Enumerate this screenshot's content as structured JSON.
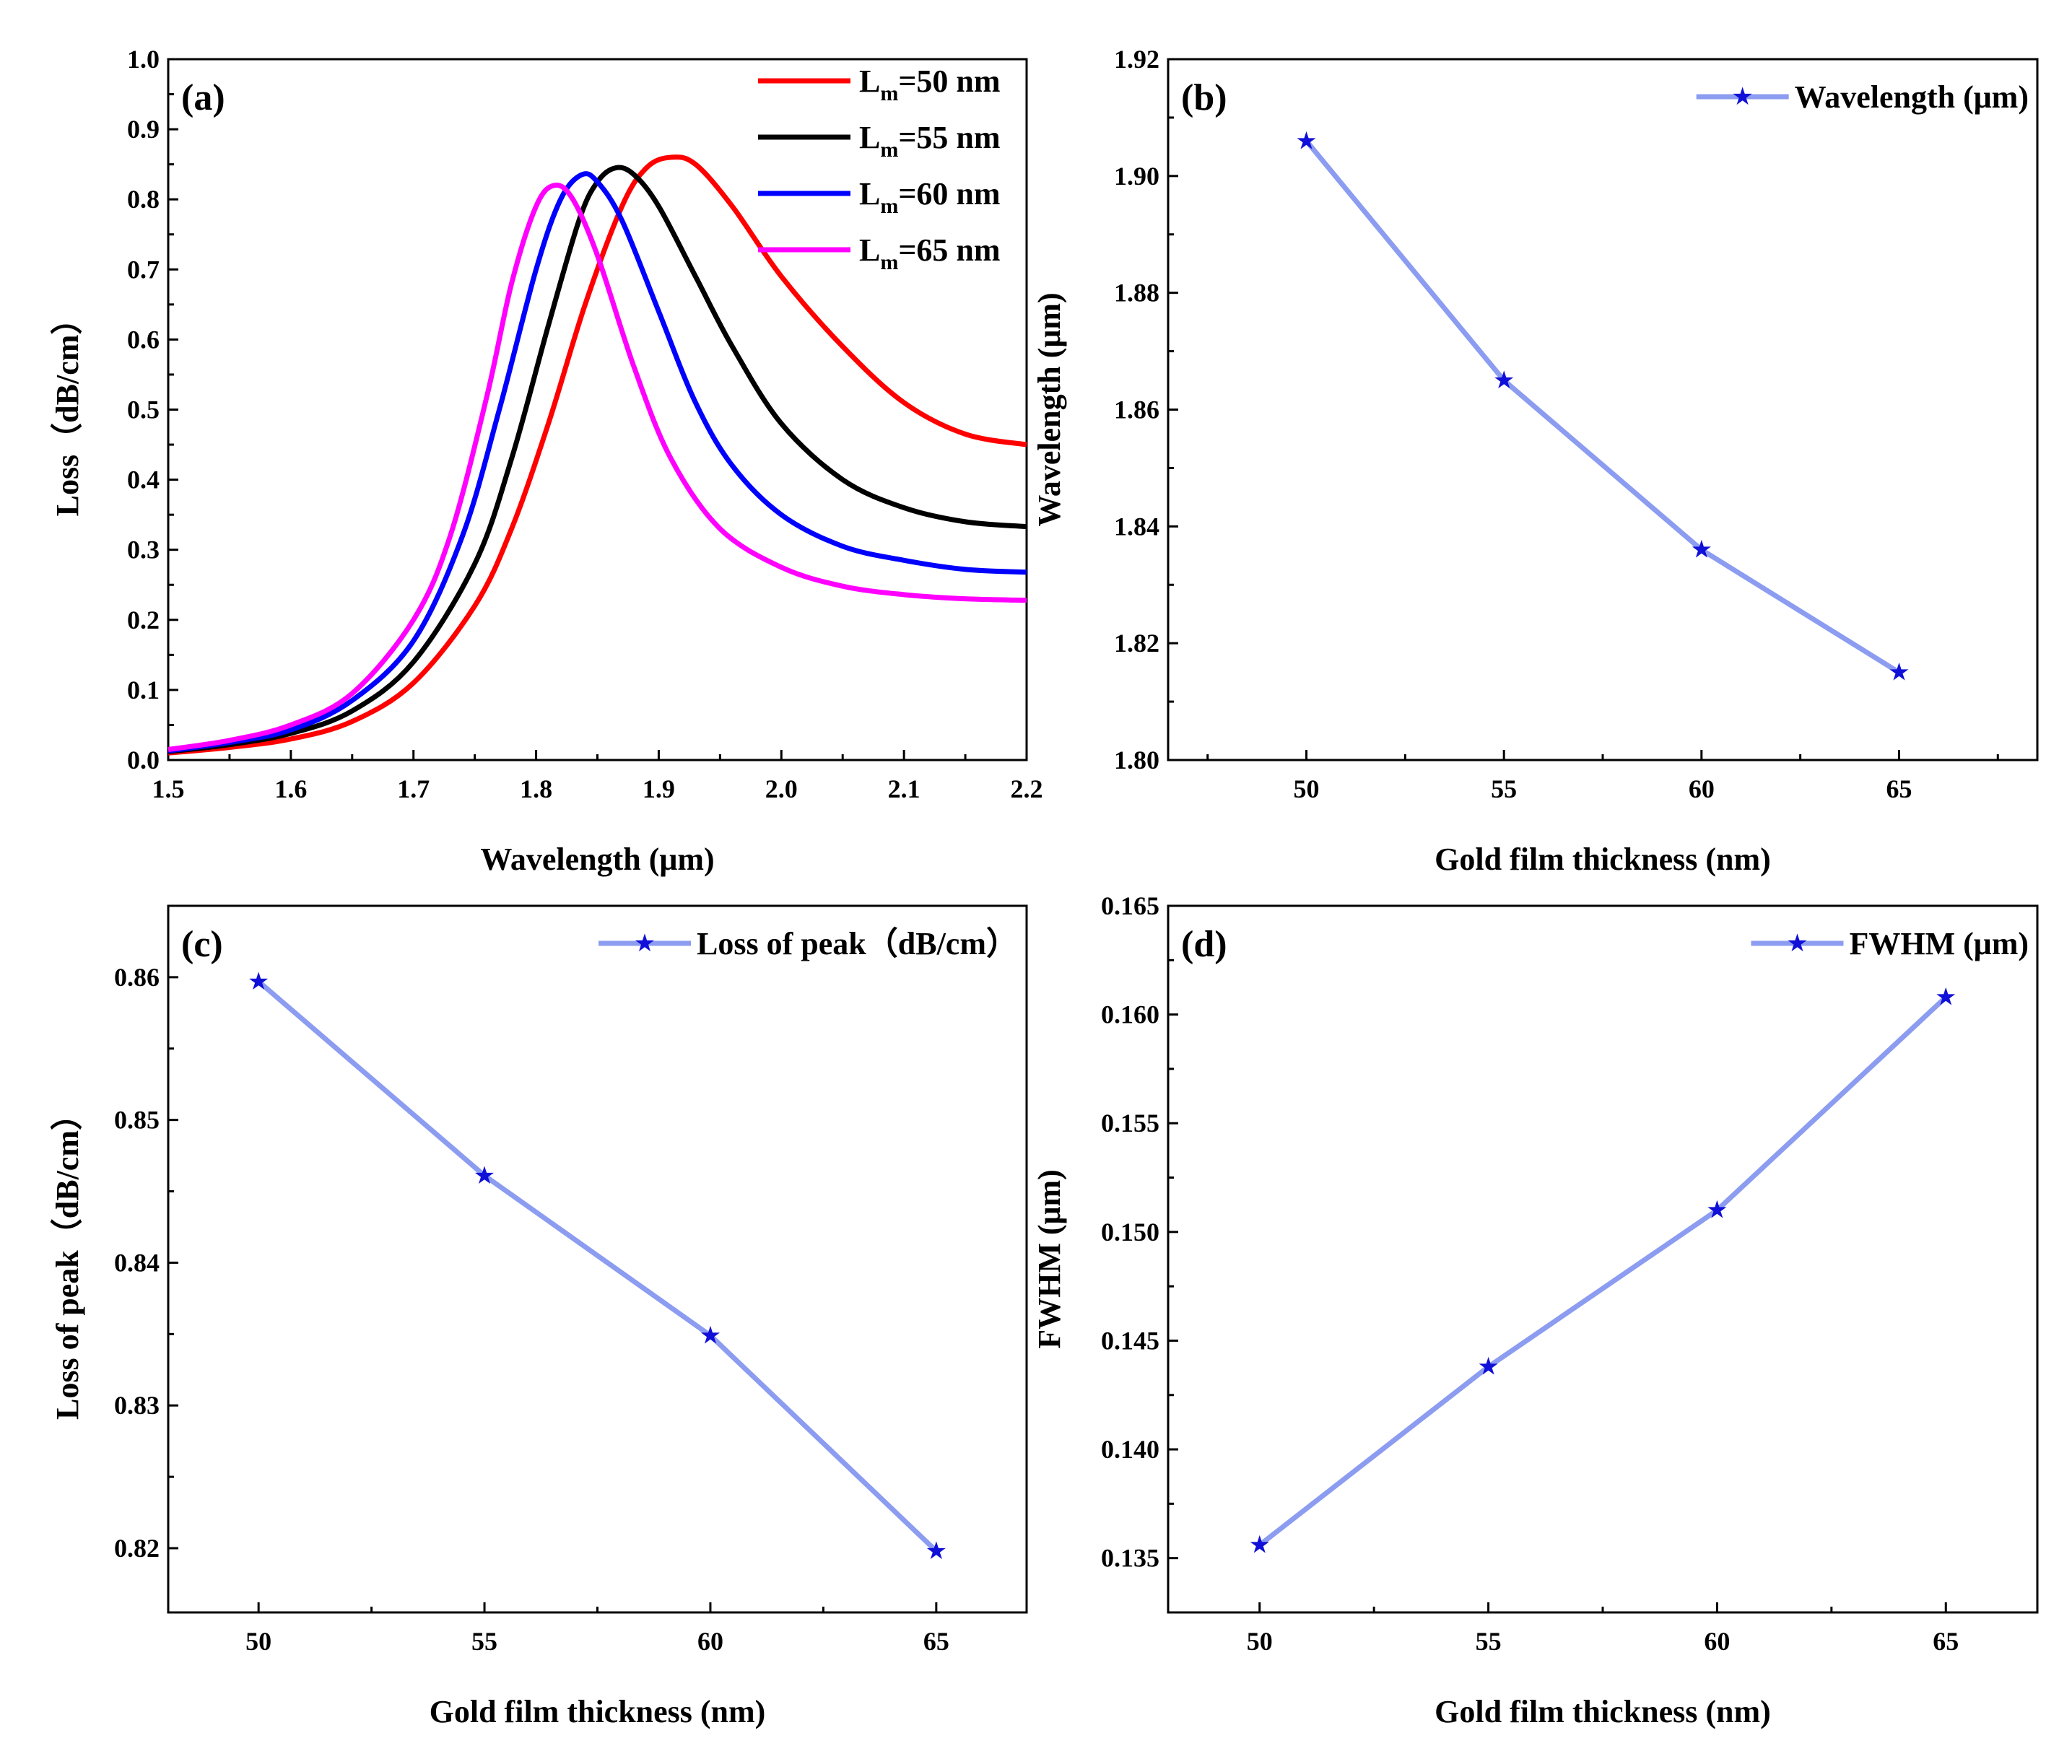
{
  "chart_data": [
    {
      "panel": "(a)",
      "type": "line",
      "xlabel": "Wavelength (μm)",
      "ylabel": "Loss（dB/cm）",
      "xlim": [
        1.5,
        2.2
      ],
      "ylim": [
        0.0,
        1.0
      ],
      "xticks": [
        "1.5",
        "1.6",
        "1.7",
        "1.8",
        "1.9",
        "2.0",
        "2.1",
        "2.2"
      ],
      "yticks": [
        "0.0",
        "0.1",
        "0.2",
        "0.3",
        "0.4",
        "0.5",
        "0.6",
        "0.7",
        "0.8",
        "0.9",
        "1.0"
      ],
      "legend_position": "top-right",
      "series": [
        {
          "name_main": "L",
          "name_sub": "m",
          "name_rest": "=50 nm",
          "color": "#ff0000",
          "x": [
            1.5,
            1.55,
            1.6,
            1.65,
            1.7,
            1.75,
            1.78,
            1.81,
            1.84,
            1.87,
            1.89,
            1.91,
            1.93,
            1.96,
            2.0,
            2.05,
            2.1,
            2.15,
            2.2
          ],
          "y": [
            0.01,
            0.018,
            0.03,
            0.055,
            0.11,
            0.22,
            0.33,
            0.48,
            0.65,
            0.79,
            0.845,
            0.86,
            0.85,
            0.79,
            0.69,
            0.59,
            0.51,
            0.465,
            0.45
          ]
        },
        {
          "name_main": "L",
          "name_sub": "m",
          "name_rest": "=55 nm",
          "color": "#000000",
          "x": [
            1.5,
            1.55,
            1.6,
            1.65,
            1.7,
            1.75,
            1.78,
            1.81,
            1.835,
            1.85,
            1.865,
            1.88,
            1.9,
            1.93,
            1.96,
            2.0,
            2.05,
            2.1,
            2.15,
            2.2
          ],
          "y": [
            0.012,
            0.022,
            0.038,
            0.07,
            0.14,
            0.28,
            0.43,
            0.62,
            0.77,
            0.825,
            0.845,
            0.835,
            0.79,
            0.69,
            0.59,
            0.48,
            0.4,
            0.36,
            0.34,
            0.333
          ]
        },
        {
          "name_main": "L",
          "name_sub": "m",
          "name_rest": "=60 nm",
          "color": "#0000ff",
          "x": [
            1.5,
            1.55,
            1.6,
            1.65,
            1.7,
            1.74,
            1.77,
            1.8,
            1.82,
            1.837,
            1.85,
            1.87,
            1.9,
            1.93,
            1.96,
            2.0,
            2.05,
            2.1,
            2.15,
            2.2
          ],
          "y": [
            0.013,
            0.025,
            0.043,
            0.085,
            0.17,
            0.32,
            0.5,
            0.7,
            0.8,
            0.835,
            0.825,
            0.77,
            0.64,
            0.51,
            0.42,
            0.35,
            0.305,
            0.285,
            0.272,
            0.268
          ]
        },
        {
          "name_main": "L",
          "name_sub": "m",
          "name_rest": "=65 nm",
          "color": "#ff00ff",
          "x": [
            1.5,
            1.55,
            1.6,
            1.65,
            1.7,
            1.73,
            1.76,
            1.78,
            1.8,
            1.815,
            1.83,
            1.85,
            1.88,
            1.91,
            1.95,
            2.0,
            2.05,
            2.1,
            2.15,
            2.2
          ],
          "y": [
            0.015,
            0.028,
            0.05,
            0.095,
            0.2,
            0.32,
            0.52,
            0.68,
            0.79,
            0.82,
            0.8,
            0.72,
            0.56,
            0.43,
            0.33,
            0.275,
            0.248,
            0.236,
            0.23,
            0.228
          ]
        }
      ]
    },
    {
      "panel": "(b)",
      "type": "line",
      "xlabel": "Gold film thickness (nm)",
      "ylabel": "Wavelength (μm)",
      "xlim": [
        46.5,
        68.5
      ],
      "ylim": [
        1.8,
        1.92
      ],
      "xticks": [
        "50",
        "55",
        "60",
        "65"
      ],
      "yticks": [
        "1.80",
        "1.82",
        "1.84",
        "1.86",
        "1.88",
        "1.90",
        "1.92"
      ],
      "legend_position": "top-right",
      "series": [
        {
          "name": "Wavelength (μm)",
          "color": "#8c9cf0",
          "marker": "★",
          "marker_color": "#1010d8",
          "x": [
            50,
            55,
            60,
            65
          ],
          "y": [
            1.906,
            1.865,
            1.836,
            1.815
          ]
        }
      ]
    },
    {
      "panel": "(c)",
      "type": "line",
      "xlabel": "Gold film thickness (nm)",
      "ylabel": "Loss of peak（dB/cm）",
      "xlim": [
        48,
        67
      ],
      "ylim": [
        0.8155,
        0.865
      ],
      "xticks": [
        "50",
        "55",
        "60",
        "65"
      ],
      "yticks": [
        "0.82",
        "0.83",
        "0.84",
        "0.85",
        "0.86"
      ],
      "legend_position": "top-right",
      "series": [
        {
          "name": "Loss of peak（dB/cm）",
          "color": "#8c9cf0",
          "marker": "★",
          "marker_color": "#1010d8",
          "x": [
            50,
            55,
            60,
            65
          ],
          "y": [
            0.8597,
            0.8461,
            0.8349,
            0.8198
          ]
        }
      ]
    },
    {
      "panel": "(d)",
      "type": "line",
      "xlabel": "Gold film thickness (nm)",
      "ylabel": "FWHM (μm)",
      "xlim": [
        48,
        67
      ],
      "ylim": [
        0.1325,
        0.165
      ],
      "xticks": [
        "50",
        "55",
        "60",
        "65"
      ],
      "yticks": [
        "0.135",
        "0.140",
        "0.145",
        "0.150",
        "0.155",
        "0.160",
        "0.165"
      ],
      "legend_position": "top-right",
      "series": [
        {
          "name": "FWHM (μm)",
          "color": "#8c9cf0",
          "marker": "★",
          "marker_color": "#1010d8",
          "x": [
            50,
            55,
            60,
            65
          ],
          "y": [
            0.1356,
            0.1438,
            0.151,
            0.1608
          ]
        }
      ]
    }
  ]
}
